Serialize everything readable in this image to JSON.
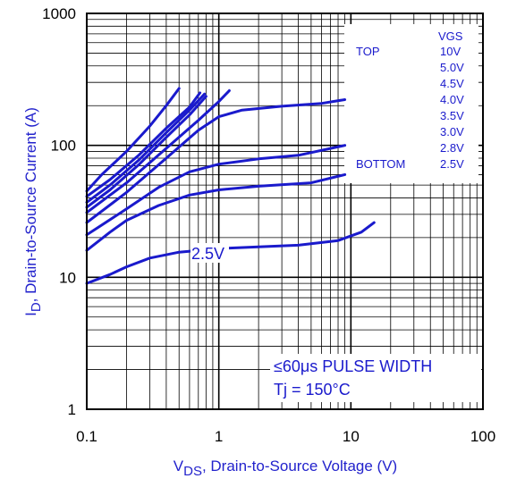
{
  "chart_data": {
    "type": "line",
    "x_scale": "log",
    "y_scale": "log",
    "xlim": [
      0.1,
      100
    ],
    "ylim": [
      1,
      1000
    ],
    "grid": true,
    "xticks": [
      "0.1",
      "1",
      "10",
      "100"
    ],
    "yticks": [
      "1",
      "10",
      "100",
      "1000"
    ],
    "xlabel": {
      "main": "V",
      "sub": "DS",
      "rest": ", Drain-to-Source Voltage (V)"
    },
    "ylabel": {
      "main": "I",
      "sub": "D",
      "rest": ", Drain-to-Source Current (A)"
    },
    "legend": {
      "header": "VGS",
      "top_label": "TOP",
      "bottom_label": "BOTTOM",
      "entries": [
        "10V",
        "5.0V",
        "4.5V",
        "4.0V",
        "3.5V",
        "3.0V",
        "2.8V",
        "2.5V"
      ],
      "position": "top-right"
    },
    "annotations": {
      "curve_label": "2.5V",
      "pulse": "≤60μs PULSE WIDTH",
      "temp": "Tj = 150°C"
    },
    "colors": {
      "series": "#1a1acc",
      "axis_text": "#2222cc",
      "grid": "#000000"
    },
    "series": [
      {
        "name": "10V",
        "x": [
          0.1,
          0.13,
          0.2,
          0.3,
          0.4,
          0.5
        ],
        "y": [
          45,
          60,
          90,
          140,
          200,
          270
        ]
      },
      {
        "name": "5.0V",
        "x": [
          0.1,
          0.15,
          0.25,
          0.4,
          0.6,
          0.72
        ],
        "y": [
          41,
          55,
          85,
          135,
          195,
          250
        ]
      },
      {
        "name": "4.5V",
        "x": [
          0.1,
          0.15,
          0.25,
          0.4,
          0.6,
          0.78
        ],
        "y": [
          37,
          50,
          78,
          125,
          185,
          245
        ]
      },
      {
        "name": "4.0V",
        "x": [
          0.1,
          0.15,
          0.25,
          0.4,
          0.6,
          0.8
        ],
        "y": [
          34,
          46,
          72,
          115,
          170,
          235
        ]
      },
      {
        "name": "3.5V",
        "x": [
          0.1,
          0.2,
          0.4,
          0.7,
          1.0,
          1.2
        ],
        "y": [
          31,
          52,
          95,
          155,
          215,
          260
        ]
      },
      {
        "name": "3.0V",
        "x": [
          0.1,
          0.2,
          0.4,
          0.7,
          1.0,
          1.5,
          3,
          6,
          9
        ],
        "y": [
          26,
          44,
          80,
          130,
          165,
          185,
          198,
          208,
          222
        ]
      },
      {
        "name": "2.8V",
        "x": [
          0.1,
          0.2,
          0.35,
          0.6,
          1.0,
          2,
          4,
          9
        ],
        "y": [
          21,
          33,
          48,
          63,
          72,
          79,
          84,
          100
        ]
      },
      {
        "name": "2.5V",
        "x": [
          0.1,
          0.15,
          0.2,
          0.35,
          0.6,
          1,
          2,
          5,
          9
        ],
        "y": [
          16,
          22,
          27,
          35,
          42,
          46,
          49,
          52,
          60
        ]
      },
      {
        "name": "2.5V",
        "x": [
          0.1,
          0.15,
          0.2,
          0.3,
          0.5,
          1,
          2,
          4,
          8,
          12,
          15
        ],
        "y": [
          9,
          10.5,
          12,
          14,
          15.5,
          16.5,
          17,
          17.5,
          19,
          22,
          26
        ]
      }
    ]
  }
}
